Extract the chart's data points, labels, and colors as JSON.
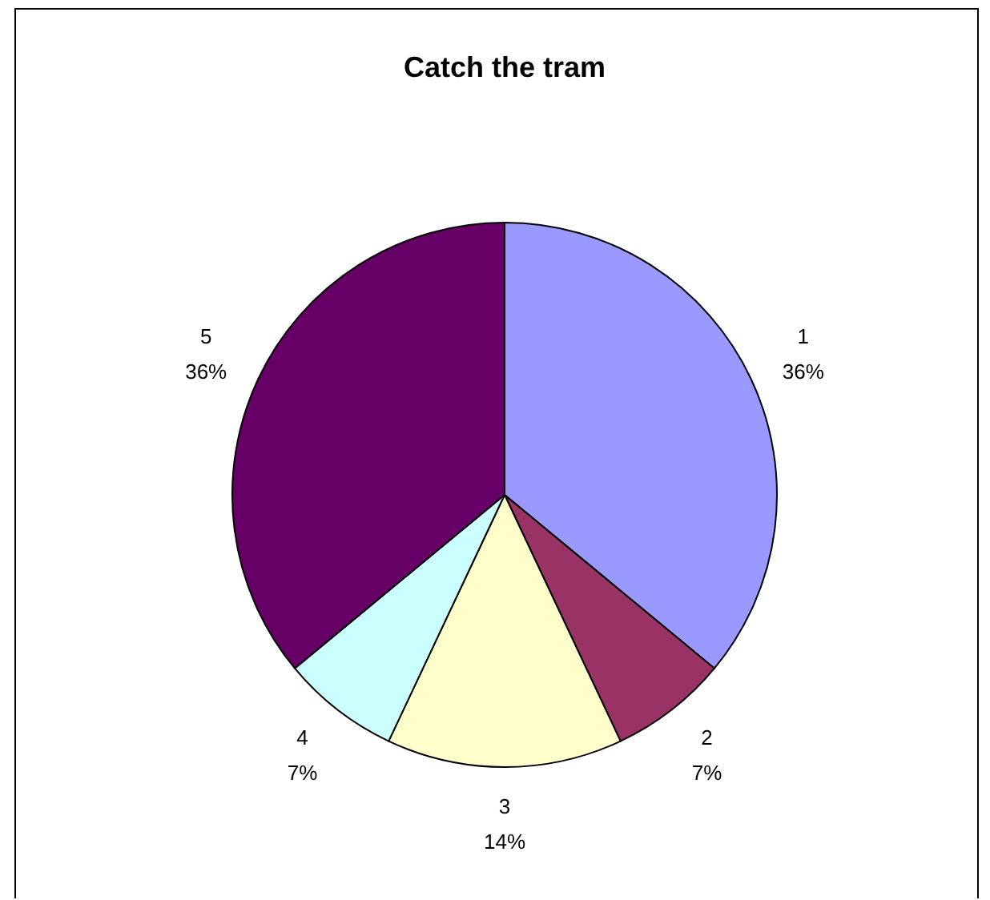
{
  "chart_data": {
    "type": "pie",
    "title": "Catch the tram",
    "categories": [
      "1",
      "2",
      "3",
      "4",
      "5"
    ],
    "values": [
      36,
      7,
      14,
      7,
      36
    ],
    "value_labels": [
      "36%",
      "7%",
      "14%",
      "7%",
      "36%"
    ],
    "colors": [
      "#9999ff",
      "#993366",
      "#ffffcc",
      "#ccffff",
      "#660066"
    ]
  }
}
